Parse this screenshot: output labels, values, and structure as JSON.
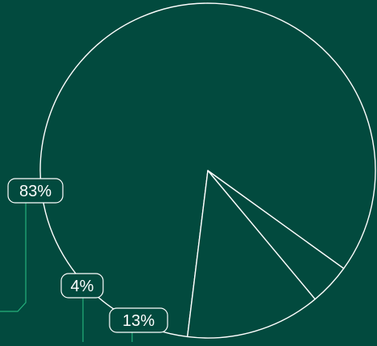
{
  "chart_data": {
    "type": "pie",
    "title": "",
    "slices": [
      {
        "label": "83%",
        "value": 83
      },
      {
        "label": "4%",
        "value": 4
      },
      {
        "label": "13%",
        "value": 13
      }
    ],
    "legend": "none"
  },
  "colors": {
    "background": "#024a3e",
    "slice_fill": "#024a3e",
    "slice_stroke": "#ffffff",
    "leader_line": "#25b07c",
    "label_text": "#ffffff"
  }
}
